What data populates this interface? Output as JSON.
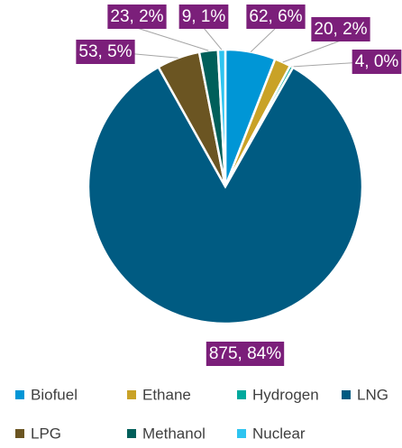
{
  "chart_data": {
    "type": "pie",
    "categories": [
      "Biofuel",
      "Ethane",
      "Hydrogen",
      "LNG",
      "LPG",
      "Methanol",
      "Nuclear"
    ],
    "values": [
      62,
      20,
      4,
      875,
      53,
      23,
      9
    ],
    "value_labels": [
      "62, 6%",
      "20, 2%",
      "4, 0%",
      "875, 84%",
      "53, 5%",
      "23, 2%",
      "9, 1%"
    ],
    "colors": [
      "#0096d6",
      "#c9a227",
      "#00a99d",
      "#005b82",
      "#6b5522",
      "#005f5a",
      "#2ec4f0"
    ],
    "legend": "bottom"
  }
}
